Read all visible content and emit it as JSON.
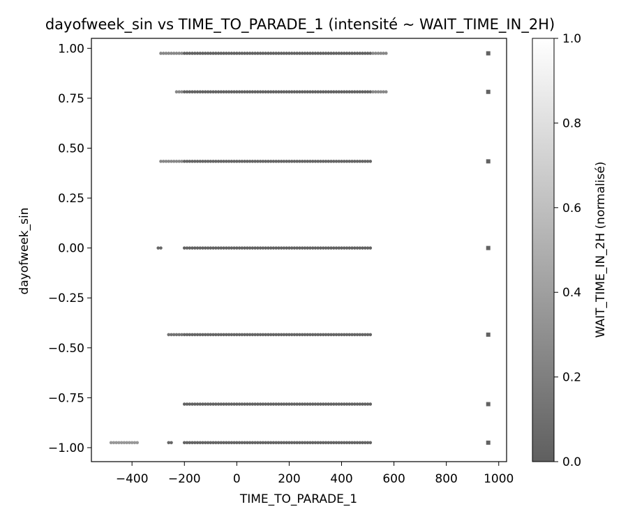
{
  "chart_data": {
    "type": "scatter",
    "title": "dayofweek_sin vs TIME_TO_PARADE_1 (intensité ~ WAIT_TIME_IN_2H)",
    "xlabel": "TIME_TO_PARADE_1",
    "ylabel": "dayofweek_sin",
    "xlim": [
      -555,
      1030
    ],
    "ylim": [
      -1.07,
      1.05
    ],
    "xticks": [
      -400,
      -200,
      0,
      200,
      400,
      600,
      800,
      1000
    ],
    "xtick_labels": [
      "−400",
      "−200",
      "0",
      "200",
      "400",
      "600",
      "800",
      "1000"
    ],
    "yticks": [
      1.0,
      0.75,
      0.5,
      0.25,
      0.0,
      -0.25,
      -0.5,
      -0.75,
      -1.0
    ],
    "ytick_labels": [
      "1.00",
      "0.75",
      "0.50",
      "0.25",
      "0.00",
      "−0.25",
      "−0.50",
      "−0.75",
      "−1.00"
    ],
    "grid": false,
    "colorbar": {
      "label": "WAIT_TIME_IN_2H (normalisé)",
      "range": [
        0,
        1
      ],
      "ticks": [
        0.0,
        0.2,
        0.4,
        0.6,
        0.8,
        1.0
      ],
      "tick_labels": [
        "0.0",
        "0.2",
        "0.4",
        "0.6",
        "0.8",
        "1.0"
      ],
      "color_low": "#5f5f5f",
      "color_high": "#ffffff"
    },
    "series": [
      {
        "y": 0.975,
        "segments": [
          {
            "x_start": -290,
            "x_end": -210,
            "step": 10,
            "intensity": 0.25
          },
          {
            "x_start": -200,
            "x_end": 510,
            "step": 10,
            "intensity": 0.02
          },
          {
            "x_start": 520,
            "x_end": 570,
            "step": 10,
            "intensity": 0.25
          }
        ],
        "extra_x": [
          960
        ]
      },
      {
        "y": 0.782,
        "segments": [
          {
            "x_start": -230,
            "x_end": -210,
            "step": 10,
            "intensity": 0.25
          },
          {
            "x_start": -200,
            "x_end": 510,
            "step": 10,
            "intensity": 0.02
          },
          {
            "x_start": 520,
            "x_end": 570,
            "step": 10,
            "intensity": 0.25
          }
        ],
        "extra_x": [
          960
        ]
      },
      {
        "y": 0.434,
        "segments": [
          {
            "x_start": -290,
            "x_end": -210,
            "step": 10,
            "intensity": 0.25
          },
          {
            "x_start": -200,
            "x_end": 510,
            "step": 10,
            "intensity": 0.04
          }
        ],
        "extra_x": [
          960
        ]
      },
      {
        "y": 0.0,
        "segments": [
          {
            "x_start": -300,
            "x_end": -290,
            "step": 10,
            "intensity": 0.05
          },
          {
            "x_start": -200,
            "x_end": 510,
            "step": 10,
            "intensity": 0.02
          }
        ],
        "extra_x": [
          960
        ]
      },
      {
        "y": -0.434,
        "segments": [
          {
            "x_start": -260,
            "x_end": -210,
            "step": 10,
            "intensity": 0.12
          },
          {
            "x_start": -200,
            "x_end": 510,
            "step": 10,
            "intensity": 0.04
          }
        ],
        "extra_x": [
          960
        ]
      },
      {
        "y": -0.782,
        "segments": [
          {
            "x_start": -200,
            "x_end": 510,
            "step": 10,
            "intensity": 0.02
          }
        ],
        "extra_x": [
          960
        ]
      },
      {
        "y": -0.975,
        "segments": [
          {
            "x_start": -480,
            "x_end": -380,
            "step": 10,
            "intensity": 0.35
          },
          {
            "x_start": -260,
            "x_end": -250,
            "step": 10,
            "intensity": 0.05
          },
          {
            "x_start": -200,
            "x_end": 510,
            "step": 10,
            "intensity": 0.03
          }
        ],
        "extra_x": [
          960
        ]
      }
    ]
  }
}
